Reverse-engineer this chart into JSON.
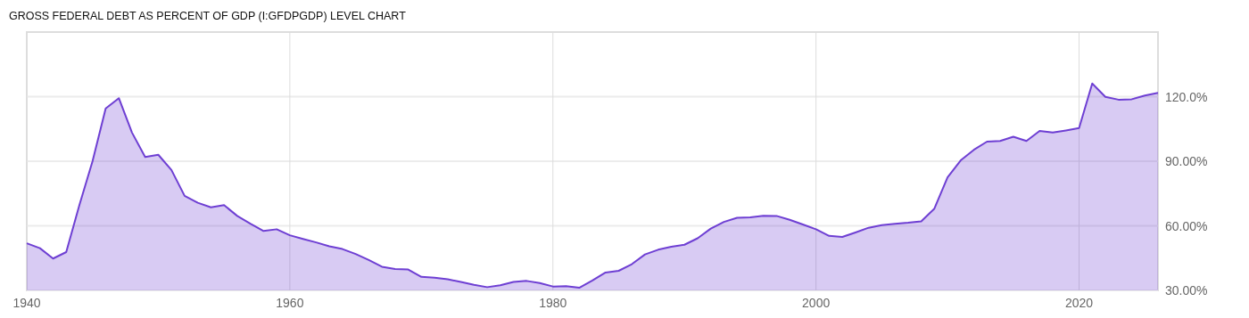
{
  "chart_data": {
    "type": "area",
    "title": "GROSS FEDERAL DEBT AS PERCENT OF GDP (I:GFDPGDP) LEVEL CHART",
    "x": [
      1940,
      1941,
      1942,
      1943,
      1944,
      1945,
      1946,
      1947,
      1948,
      1949,
      1950,
      1951,
      1952,
      1953,
      1954,
      1955,
      1956,
      1957,
      1958,
      1959,
      1960,
      1961,
      1962,
      1963,
      1964,
      1965,
      1966,
      1967,
      1968,
      1969,
      1970,
      1971,
      1972,
      1973,
      1974,
      1975,
      1976,
      1977,
      1978,
      1979,
      1980,
      1981,
      1982,
      1983,
      1984,
      1985,
      1986,
      1987,
      1988,
      1989,
      1990,
      1991,
      1992,
      1993,
      1994,
      1995,
      1996,
      1997,
      1998,
      1999,
      2000,
      2001,
      2002,
      2003,
      2004,
      2005,
      2006,
      2007,
      2008,
      2009,
      2010,
      2011,
      2012,
      2013,
      2014,
      2015,
      2016,
      2017,
      2018,
      2019,
      2020,
      2021,
      2022,
      2023,
      2024,
      2025,
      2026
    ],
    "series": [
      {
        "color": "#6e3fd3",
        "values": [
          51.9,
          49.6,
          44.8,
          47.8,
          69.6,
          90.0,
          114.5,
          119.3,
          103.3,
          92.0,
          93.0,
          85.9,
          73.9,
          70.7,
          68.6,
          69.6,
          64.6,
          61.0,
          57.6,
          58.4,
          55.6,
          53.9,
          52.3,
          50.5,
          49.2,
          46.9,
          44.1,
          41.0,
          39.9,
          39.7,
          36.3,
          35.9,
          35.2,
          33.9,
          32.6,
          31.5,
          32.4,
          33.9,
          34.4,
          33.4,
          31.8,
          32.0,
          31.2,
          34.6,
          38.3,
          39.1,
          42.2,
          46.7,
          48.9,
          50.3,
          51.2,
          54.2,
          58.7,
          61.8,
          63.7,
          63.9,
          64.7,
          64.6,
          62.8,
          60.6,
          58.4,
          55.3,
          54.8,
          56.9,
          59.1,
          60.3,
          60.9,
          61.4,
          62.1,
          68.0,
          82.5,
          90.4,
          95.3,
          99.1,
          99.4,
          101.4,
          99.4,
          104.1,
          103.3,
          104.3,
          105.4,
          126.1,
          119.9,
          118.6,
          118.8,
          120.5,
          121.8
        ]
      }
    ],
    "xlim": [
      1940,
      2026
    ],
    "xticks": [
      1940,
      1960,
      1980,
      2000,
      2020
    ],
    "ylim": [
      30,
      150
    ],
    "yticks": [
      {
        "value": 30,
        "label": "30.00%"
      },
      {
        "value": 60,
        "label": "60.00%"
      },
      {
        "value": 90,
        "label": "90.00%"
      },
      {
        "value": 120,
        "label": "120.0%"
      }
    ],
    "grid": true
  }
}
